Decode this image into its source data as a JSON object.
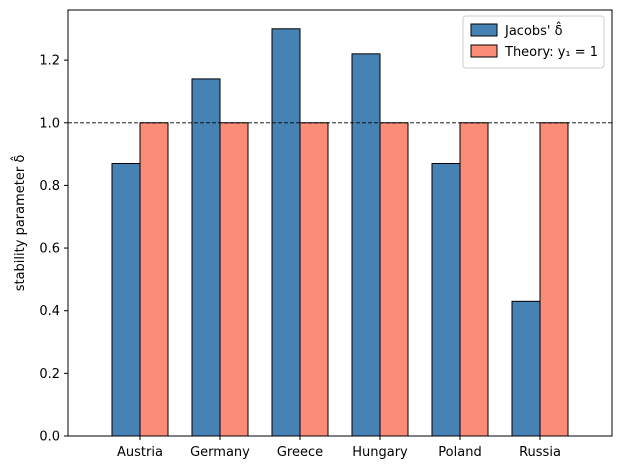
{
  "chart_data": {
    "type": "bar",
    "categories": [
      "Austria",
      "Germany",
      "Greece",
      "Hungary",
      "Poland",
      "Russia"
    ],
    "series": [
      {
        "name": "Jacobs' δ̂",
        "values": [
          0.87,
          1.14,
          1.3,
          1.22,
          0.87,
          0.43
        ],
        "color": "#4682b4"
      },
      {
        "name": "Theory: y₁ = 1",
        "values": [
          1.0,
          1.0,
          1.0,
          1.0,
          1.0,
          1.0
        ],
        "color": "#fa8c78"
      }
    ],
    "title": "",
    "xlabel": "",
    "ylabel": "stability parameter δ̂",
    "ylim": [
      0,
      1.36
    ],
    "yticks": [
      "0.0",
      "0.2",
      "0.4",
      "0.6",
      "0.8",
      "1.0",
      "1.2"
    ],
    "reference_line": {
      "y": 1.0,
      "style": "dashed",
      "color": "#000000"
    },
    "grid": false,
    "legend_position": "top-right"
  }
}
